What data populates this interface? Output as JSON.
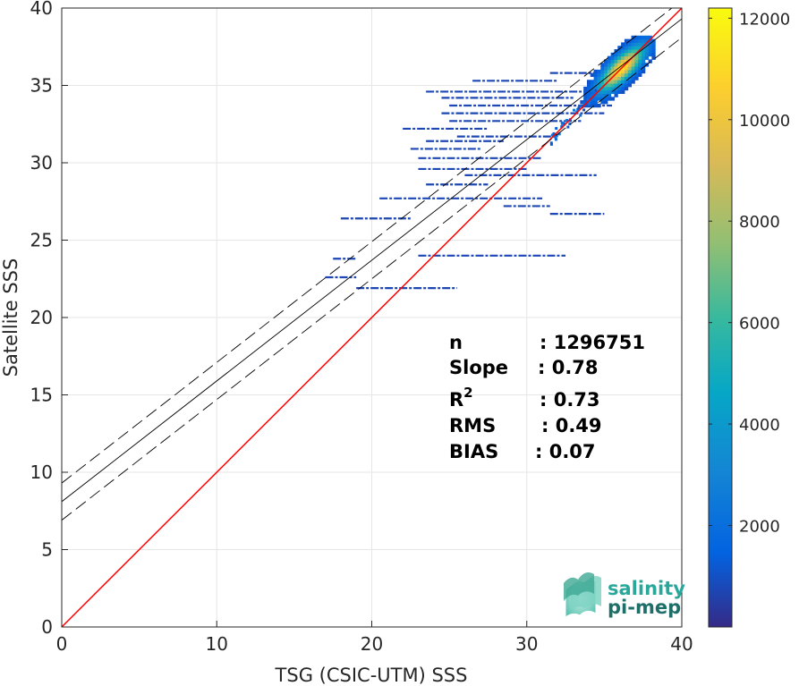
{
  "chart_data": {
    "type": "heatmap",
    "xlabel": "TSG (CSIC-UTM) SSS",
    "ylabel": "Satellite SSS",
    "xlim": [
      0,
      40
    ],
    "ylim": [
      0,
      40
    ],
    "xticks": [
      "0",
      "10",
      "20",
      "30",
      "40"
    ],
    "yticks": [
      "0",
      "5",
      "10",
      "15",
      "20",
      "25",
      "30",
      "35",
      "40"
    ],
    "grid": true,
    "colorbar": {
      "range": [
        0,
        12200
      ],
      "ticks": [
        "2000",
        "4000",
        "6000",
        "8000",
        "10000",
        "12000"
      ],
      "colormap": "parula"
    },
    "reference_line": {
      "slope": 1,
      "intercept": 0,
      "color": "#ff0000"
    },
    "regression_line": {
      "slope": 0.78,
      "intercept": 8.1,
      "band": 1.2,
      "color": "#000000"
    },
    "stats": [
      {
        "label": "n",
        "value": ": 1296751"
      },
      {
        "label": "Slope",
        "value": ": 0.78"
      },
      {
        "label": "R",
        "sup": "2",
        "value": ": 0.73"
      },
      {
        "label": "RMS",
        "value": ": 0.49"
      },
      {
        "label": "BIAS",
        "value": ": 0.07"
      }
    ],
    "cluster": {
      "x": 36,
      "y": 36,
      "peak": 12200
    },
    "streaks": [
      {
        "y": 35.8,
        "x0": 31.5,
        "x1": 34.5
      },
      {
        "y": 35.3,
        "x0": 26.5,
        "x1": 32.0
      },
      {
        "y": 34.6,
        "x0": 23.5,
        "x1": 34.0
      },
      {
        "y": 34.2,
        "x0": 24.5,
        "x1": 33.0
      },
      {
        "y": 33.7,
        "x0": 25.0,
        "x1": 35.5
      },
      {
        "y": 33.2,
        "x0": 24.5,
        "x1": 35.0
      },
      {
        "y": 32.7,
        "x0": 25.0,
        "x1": 33.5
      },
      {
        "y": 32.2,
        "x0": 22.0,
        "x1": 27.5
      },
      {
        "y": 31.7,
        "x0": 25.5,
        "x1": 32.0
      },
      {
        "y": 31.4,
        "x0": 23.5,
        "x1": 28.5
      },
      {
        "y": 30.9,
        "x0": 22.5,
        "x1": 27.0
      },
      {
        "y": 30.3,
        "x0": 23.0,
        "x1": 31.0
      },
      {
        "y": 29.6,
        "x0": 23.0,
        "x1": 30.0
      },
      {
        "y": 29.2,
        "x0": 26.0,
        "x1": 34.5
      },
      {
        "y": 28.6,
        "x0": 23.5,
        "x1": 27.5
      },
      {
        "y": 27.7,
        "x0": 20.5,
        "x1": 31.0
      },
      {
        "y": 27.2,
        "x0": 28.5,
        "x1": 31.5
      },
      {
        "y": 26.7,
        "x0": 31.5,
        "x1": 35.0
      },
      {
        "y": 26.4,
        "x0": 18.0,
        "x1": 22.5
      },
      {
        "y": 24.0,
        "x0": 23.0,
        "x1": 32.5
      },
      {
        "y": 23.8,
        "x0": 17.5,
        "x1": 19.0
      },
      {
        "y": 22.6,
        "x0": 17.0,
        "x1": 19.0
      },
      {
        "y": 21.9,
        "x0": 19.0,
        "x1": 25.5
      }
    ]
  },
  "logo": {
    "line1": "salinity",
    "line2": "pi-mep"
  },
  "colors": {
    "background": "#ffffff",
    "grid": "#e6e6e6",
    "axis": "#262626"
  }
}
